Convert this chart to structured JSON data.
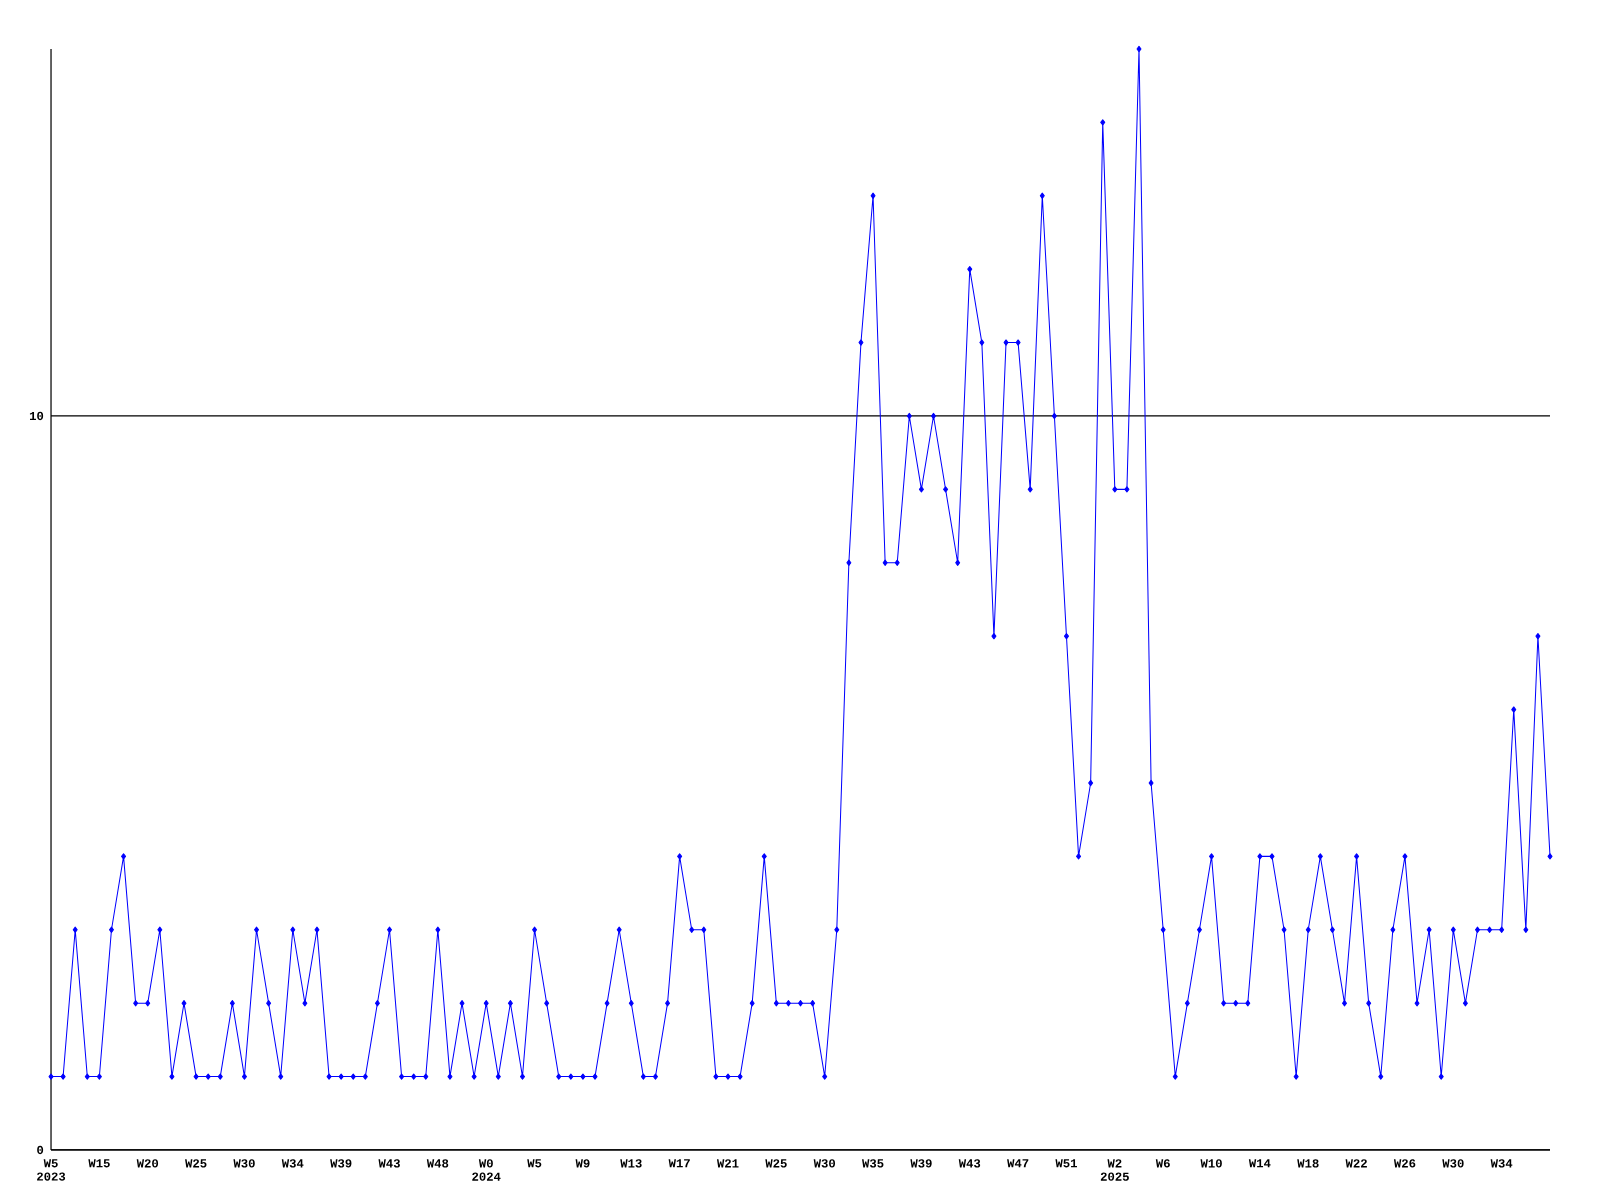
{
  "chart_data": {
    "type": "line",
    "categories": [
      "W5 2023",
      null,
      null,
      null,
      "W15",
      null,
      null,
      null,
      "W20",
      null,
      null,
      null,
      "W25",
      null,
      null,
      null,
      "W30",
      null,
      null,
      null,
      "W34",
      null,
      null,
      null,
      "W39",
      null,
      null,
      null,
      "W43",
      null,
      null,
      null,
      "W48",
      null,
      null,
      null,
      "W0 2024",
      null,
      null,
      null,
      "W5",
      null,
      null,
      null,
      "W9",
      null,
      null,
      null,
      "W13",
      null,
      null,
      null,
      "W17",
      null,
      null,
      null,
      "W21",
      null,
      null,
      null,
      "W25",
      null,
      null,
      null,
      "W30",
      null,
      null,
      null,
      "W35",
      null,
      null,
      null,
      "W39",
      null,
      null,
      null,
      "W43",
      null,
      null,
      null,
      "W47",
      null,
      null,
      null,
      "W51",
      null,
      null,
      null,
      "W2 2025",
      null,
      null,
      null,
      "W6",
      null,
      null,
      null,
      "W10",
      null,
      null,
      null,
      "W14",
      null,
      null,
      null,
      "W18",
      null,
      null,
      null,
      "W22",
      null,
      null,
      null,
      "W26",
      null,
      null,
      null,
      "W30",
      null,
      null,
      null,
      "W34",
      null,
      null,
      null,
      null
    ],
    "series": [
      {
        "color": "#0000ff",
        "values": [
          1,
          1,
          3,
          1,
          1,
          3,
          4,
          2,
          2,
          3,
          1,
          2,
          1,
          1,
          1,
          2,
          1,
          3,
          2,
          1,
          3,
          2,
          3,
          1,
          1,
          1,
          1,
          2,
          3,
          1,
          1,
          1,
          3,
          1,
          2,
          1,
          2,
          1,
          2,
          1,
          3,
          2,
          1,
          1,
          1,
          1,
          2,
          3,
          2,
          1,
          1,
          2,
          4,
          3,
          3,
          1,
          1,
          1,
          2,
          4,
          2,
          2,
          2,
          2,
          1,
          3,
          8,
          11,
          13,
          8,
          8,
          10,
          9,
          10,
          9,
          8,
          12,
          11,
          7,
          11,
          11,
          9,
          13,
          10,
          7,
          4,
          5,
          14,
          9,
          9,
          15,
          5,
          3,
          1,
          2,
          3,
          4,
          2,
          2,
          2,
          4,
          4,
          3,
          1,
          3,
          4,
          3,
          2,
          4,
          2,
          1,
          3,
          4,
          2,
          3,
          1,
          3,
          2,
          3,
          3,
          3,
          6,
          3,
          7,
          4
        ]
      }
    ],
    "ylim": [
      0,
      15
    ],
    "yticks": [
      0,
      10
    ],
    "grid": "y",
    "marker": "diamond",
    "line_style": "solid"
  }
}
